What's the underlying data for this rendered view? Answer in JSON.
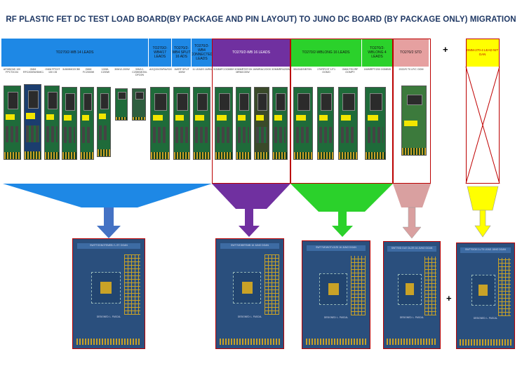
{
  "title": "RF PLASTIC FET DC TEST LOAD BOARD(BY PACKAGE AND PIN LAYOUT) TO JUNO DC BOARD  (BY  PACKAGE ONLY) MIGRATION",
  "headers": [
    {
      "id": "h1",
      "label": "TO270/2-WB 14 LEADS",
      "color": "#1e88e5"
    },
    {
      "id": "h2",
      "label": "TO270/2-WB4/17 LEADS",
      "color": "#1e88e5"
    },
    {
      "id": "h3",
      "label": "TO270/2-WB4 SPLIT 16 ADS",
      "color": "#1e88e5"
    },
    {
      "id": "h4",
      "label": "TO270/2-WB4 CONNECTED LEADS",
      "color": "#1e88e5"
    },
    {
      "id": "h5",
      "label": "TO270/2-WB 16 LEADS",
      "color": "#7030a0"
    },
    {
      "id": "h6",
      "label": "TO270/2-WBLONG 16 LEADS",
      "color": "#2bd12b"
    },
    {
      "id": "h7",
      "label": "TO270/2-WBLONG 4 LEADS",
      "color": "#2bd12b"
    },
    {
      "id": "h8",
      "label": "TO270/2 STD",
      "color": "#e6a0a0"
    },
    {
      "id": "h9",
      "label": "OMM-270-4 LEAD NIT GAN",
      "color": "#ffff00"
    }
  ],
  "subs": [
    "AFMBO/W 100 FPCT2C04",
    "OMM RFC2000W/DMC2CX1001",
    "OMM FPC0T 100 CB",
    "3LB/MMO2CB000",
    "OMM FC2000W",
    "100W-C200W",
    "30M12-200W",
    "30M12-C20W/MONI-DFC0N",
    "AOQ/3X/29/RA/SOCGE",
    "1M/RF SPLIT 100W",
    "11 LEADS 16/RA",
    "SOMMFCOOMB/MRTF/COMMER",
    "3OMMRT8T/OML MRMCO0W",
    "1M/MRAC2OO00M",
    "3OMMRR4200M",
    "30LEADS/BT0N",
    "1TI/RFC0T 1/T1 OOMO",
    "OMM FEC/RF OOMPY",
    "1M/MRPT/200 OOMB/D",
    "2022/S T0 LF/C OOM"
  ],
  "boards": [
    "B1",
    "B2",
    "B3",
    "B4",
    "B5",
    "B6",
    "B7",
    "B8",
    "B9",
    "B10",
    "B11",
    "B12",
    "B13",
    "B14",
    "B15",
    "B16",
    "B17",
    "B18",
    "B19"
  ],
  "juno_boards": [
    {
      "id": "j1",
      "title": "SWITTODNOTEMEB / L.ST. DGAN",
      "designer": "DESIGNED: L. PASCAL"
    },
    {
      "id": "j2",
      "title": "SWT70/DB5TEMB 16 JUNO DGAN",
      "designer": "DESIGNED: L. PASCAL"
    },
    {
      "id": "j3",
      "title": "SWT70/DWOTLG/Z5 16 JUNO DGAN",
      "designer": "DESIGNED: L. PASCAL"
    },
    {
      "id": "j4",
      "title": "SWT70/D DLE OL/ZS 16 JUNO DGAN",
      "designer": "DESIGNED: L. PASCAL"
    },
    {
      "id": "j5",
      "title": "SWT70/D8 2-L/T4 LEAD JUNO DGAN",
      "designer": "DESIGNED: L. PASCAL"
    }
  ],
  "plus_signs": [
    "+",
    "+"
  ],
  "colors": {
    "blue": "#1e88e5",
    "purple": "#7030a0",
    "green": "#2bd12b",
    "pink": "#d9a0a0",
    "yellow": "#ffff00",
    "arrow_blue": "#4472c4",
    "red_border": "#c00000"
  }
}
